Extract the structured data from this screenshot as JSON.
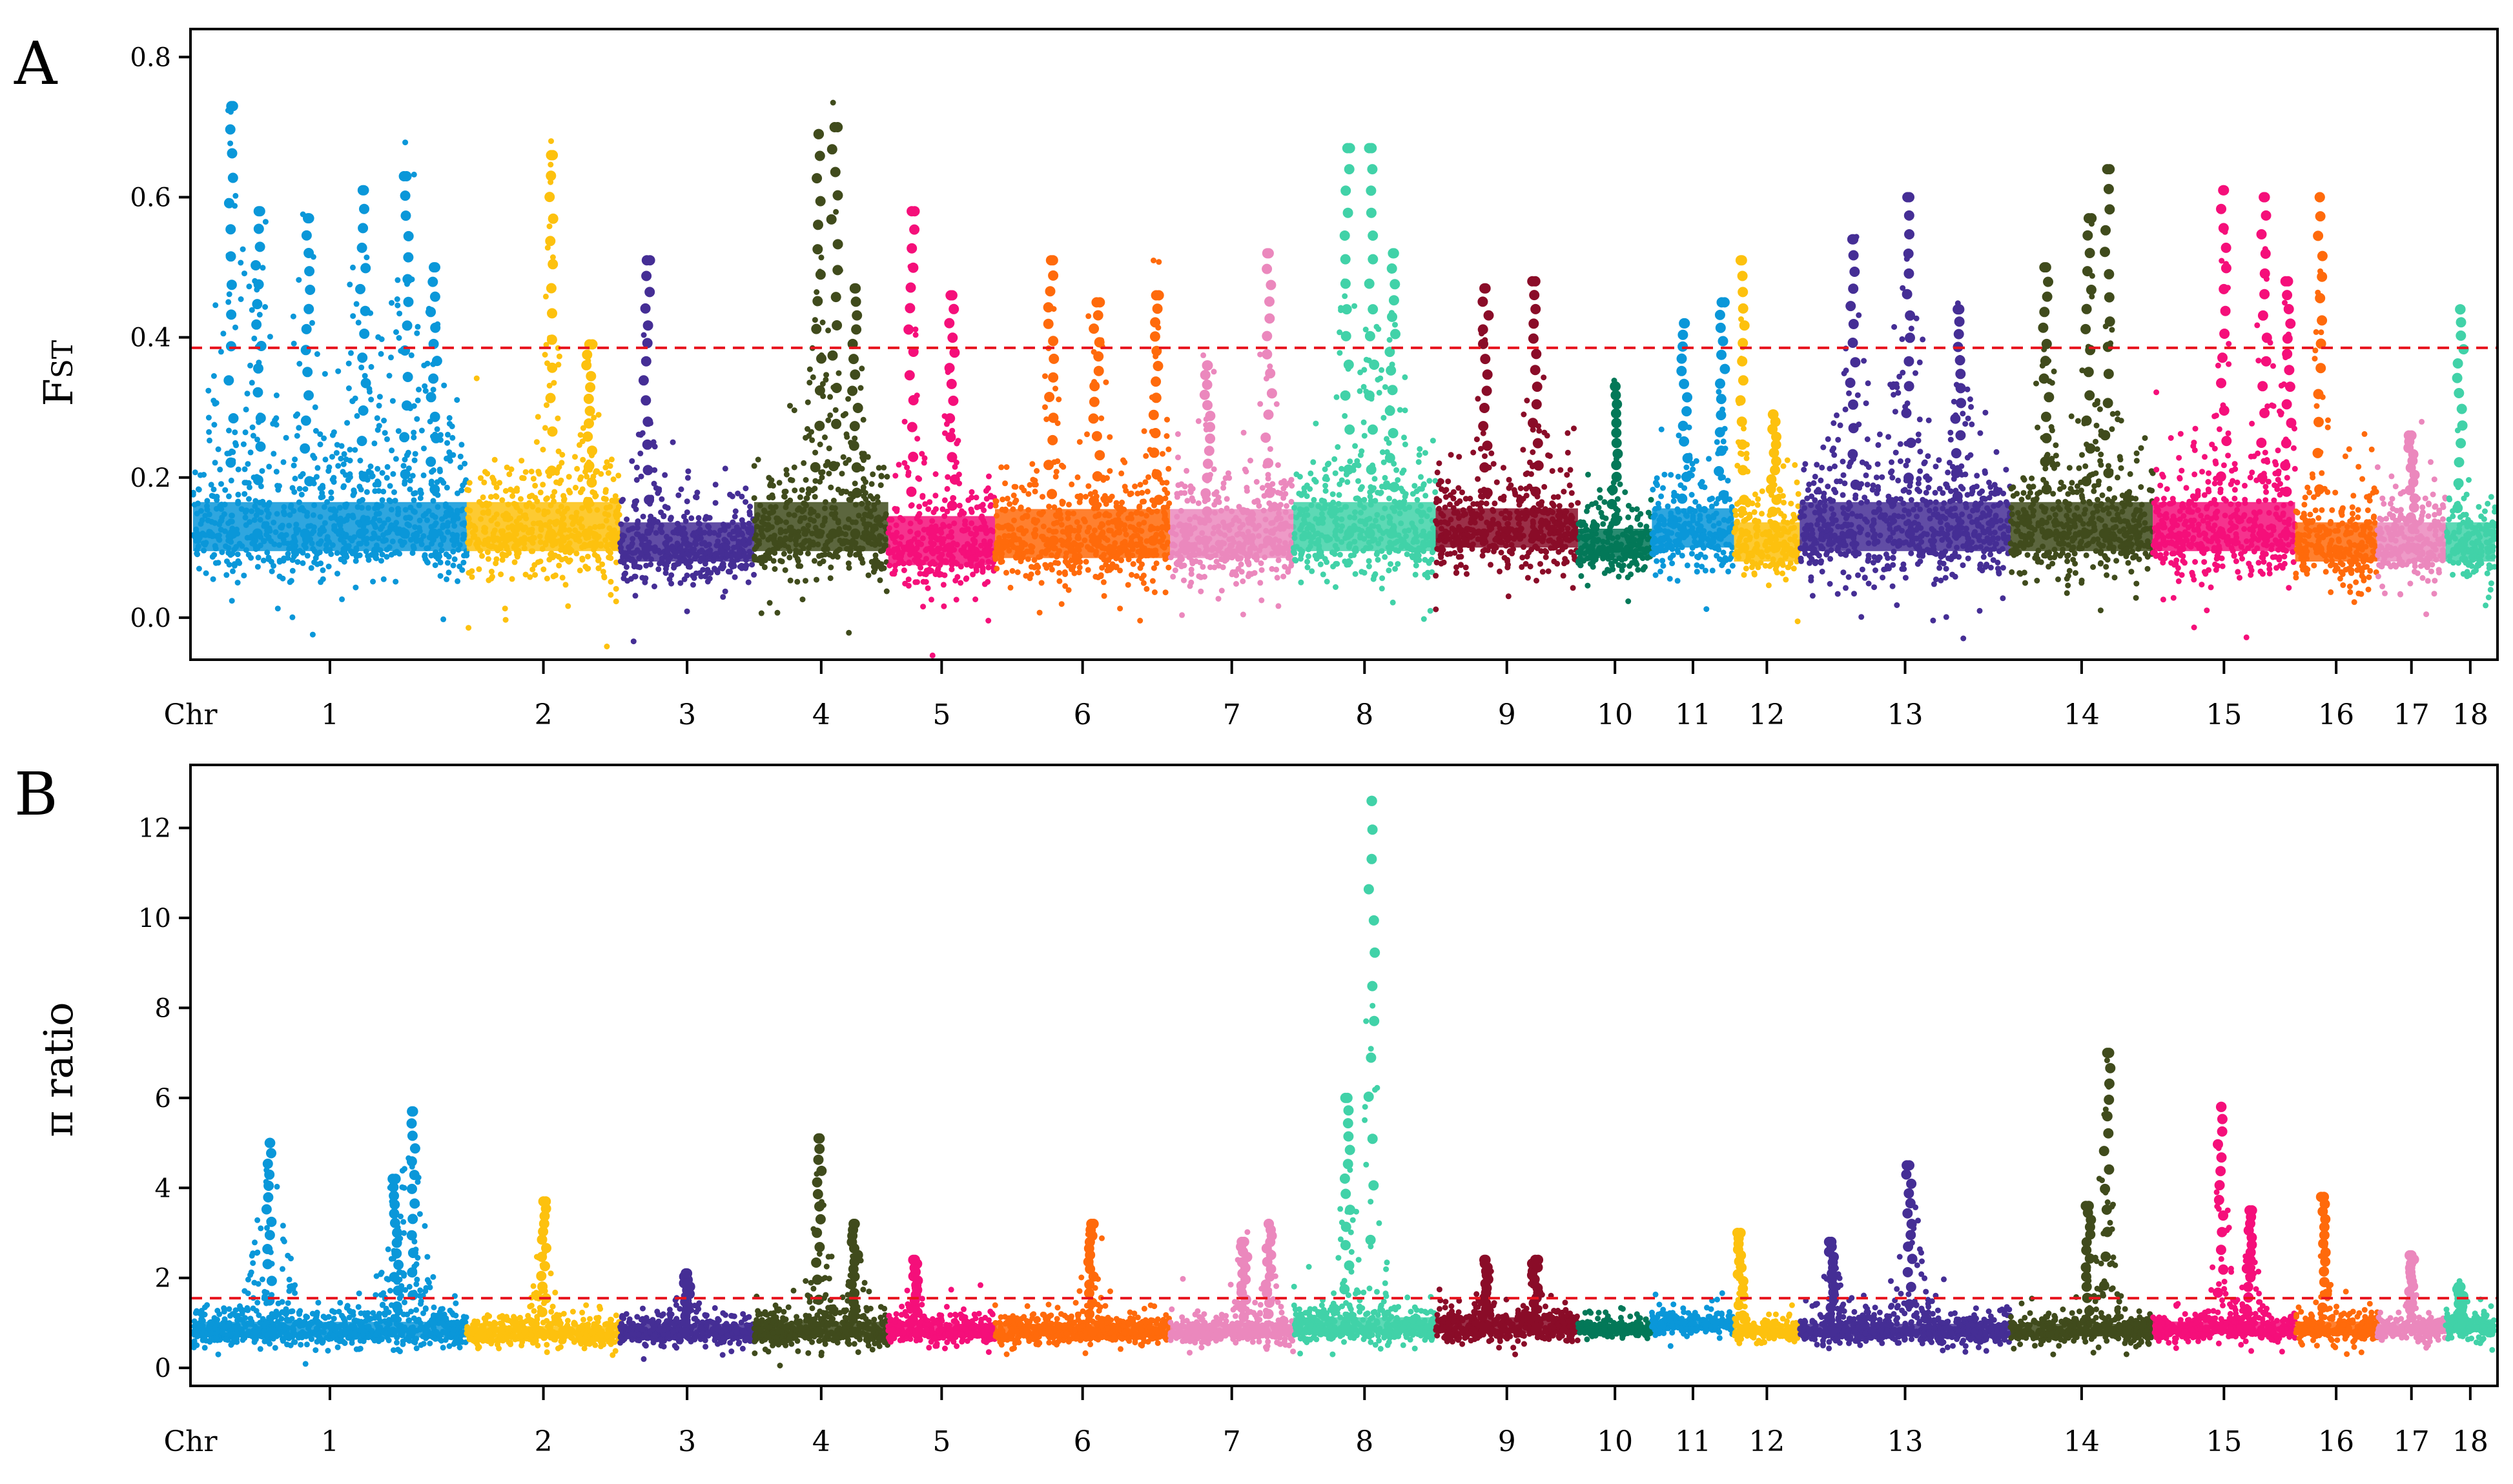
{
  "chart_data": [
    {
      "type": "scatter",
      "subtype": "manhattan",
      "panel_label": "A",
      "ylabel": "Fst",
      "ylabel_main": "F",
      "ylabel_sub": "ST",
      "xlabel_prefix": "Chr",
      "ylim": [
        -0.06,
        0.84
      ],
      "yticks": [
        0.0,
        0.2,
        0.4,
        0.6,
        0.8
      ],
      "ytick_labels": [
        "0.0",
        "0.2",
        "0.4",
        "0.6",
        "0.8"
      ],
      "threshold": 0.385,
      "threshold_color": "#e8141e",
      "chromosomes": [
        {
          "label": "1",
          "start": 0,
          "end": 10,
          "color": "#0a97d9",
          "base": 0.12,
          "spread": 0.05,
          "peaks": [
            {
              "pos": 0.14,
              "value": 0.73
            },
            {
              "pos": 0.24,
              "value": 0.58
            },
            {
              "pos": 0.42,
              "value": 0.57
            },
            {
              "pos": 0.62,
              "value": 0.61
            },
            {
              "pos": 0.78,
              "value": 0.63
            },
            {
              "pos": 0.88,
              "value": 0.5
            }
          ]
        },
        {
          "label": "2",
          "start": 10,
          "end": 15.6,
          "color": "#fdc10e",
          "base": 0.12,
          "spread": 0.05,
          "peaks": [
            {
              "pos": 0.55,
              "value": 0.66
            },
            {
              "pos": 0.8,
              "value": 0.39
            }
          ]
        },
        {
          "label": "3",
          "start": 15.6,
          "end": 20.5,
          "color": "#452e95",
          "base": 0.1,
          "spread": 0.04,
          "peaks": [
            {
              "pos": 0.2,
              "value": 0.51
            }
          ]
        },
        {
          "label": "4",
          "start": 20.5,
          "end": 25.4,
          "color": "#404b1c",
          "base": 0.12,
          "spread": 0.05,
          "peaks": [
            {
              "pos": 0.48,
              "value": 0.69
            },
            {
              "pos": 0.6,
              "value": 0.7
            },
            {
              "pos": 0.75,
              "value": 0.47
            }
          ]
        },
        {
          "label": "5",
          "start": 25.4,
          "end": 29.3,
          "color": "#f50f7a",
          "base": 0.1,
          "spread": 0.05,
          "peaks": [
            {
              "pos": 0.22,
              "value": 0.58
            },
            {
              "pos": 0.6,
              "value": 0.46
            }
          ]
        },
        {
          "label": "6",
          "start": 29.3,
          "end": 35.7,
          "color": "#ff6a0b",
          "base": 0.11,
          "spread": 0.05,
          "peaks": [
            {
              "pos": 0.32,
              "value": 0.51
            },
            {
              "pos": 0.58,
              "value": 0.45
            },
            {
              "pos": 0.92,
              "value": 0.46
            }
          ]
        },
        {
          "label": "7",
          "start": 35.7,
          "end": 40.2,
          "color": "#eb88bd",
          "base": 0.11,
          "spread": 0.05,
          "peaks": [
            {
              "pos": 0.3,
              "value": 0.36
            },
            {
              "pos": 0.8,
              "value": 0.52
            }
          ]
        },
        {
          "label": "8",
          "start": 40.2,
          "end": 45.4,
          "color": "#41d2a8",
          "base": 0.12,
          "spread": 0.05,
          "peaks": [
            {
              "pos": 0.38,
              "value": 0.67
            },
            {
              "pos": 0.55,
              "value": 0.67
            },
            {
              "pos": 0.7,
              "value": 0.52
            }
          ]
        },
        {
          "label": "9",
          "start": 45.4,
          "end": 50.6,
          "color": "#8a0c28",
          "base": 0.12,
          "spread": 0.04,
          "peaks": [
            {
              "pos": 0.35,
              "value": 0.47
            },
            {
              "pos": 0.7,
              "value": 0.48
            }
          ]
        },
        {
          "label": "10",
          "start": 50.6,
          "end": 53.3,
          "color": "#037858",
          "base": 0.1,
          "spread": 0.03,
          "peaks": [
            {
              "pos": 0.5,
              "value": 0.33
            }
          ]
        },
        {
          "label": "11",
          "start": 53.3,
          "end": 56.3,
          "color": "#0a97d9",
          "base": 0.12,
          "spread": 0.04,
          "peaks": [
            {
              "pos": 0.4,
              "value": 0.42
            },
            {
              "pos": 0.85,
              "value": 0.45
            }
          ]
        },
        {
          "label": "12",
          "start": 56.3,
          "end": 58.7,
          "color": "#fdc10e",
          "base": 0.1,
          "spread": 0.04,
          "peaks": [
            {
              "pos": 0.12,
              "value": 0.51
            },
            {
              "pos": 0.6,
              "value": 0.29
            }
          ]
        },
        {
          "label": "13",
          "start": 58.7,
          "end": 66.4,
          "color": "#452e95",
          "base": 0.12,
          "spread": 0.05,
          "peaks": [
            {
              "pos": 0.25,
              "value": 0.54
            },
            {
              "pos": 0.52,
              "value": 0.6
            },
            {
              "pos": 0.75,
              "value": 0.44
            }
          ]
        },
        {
          "label": "14",
          "start": 66.4,
          "end": 71.6,
          "color": "#404b1c",
          "base": 0.12,
          "spread": 0.05,
          "peaks": [
            {
              "pos": 0.25,
              "value": 0.5
            },
            {
              "pos": 0.55,
              "value": 0.57
            },
            {
              "pos": 0.68,
              "value": 0.64
            }
          ]
        },
        {
          "label": "15",
          "start": 71.6,
          "end": 76.8,
          "color": "#f50f7a",
          "base": 0.12,
          "spread": 0.05,
          "peaks": [
            {
              "pos": 0.5,
              "value": 0.61
            },
            {
              "pos": 0.78,
              "value": 0.6
            },
            {
              "pos": 0.95,
              "value": 0.48
            }
          ]
        },
        {
          "label": "16",
          "start": 76.8,
          "end": 79.8,
          "color": "#ff6a0b",
          "base": 0.1,
          "spread": 0.04,
          "peaks": [
            {
              "pos": 0.3,
              "value": 0.6
            }
          ]
        },
        {
          "label": "17",
          "start": 79.8,
          "end": 82.3,
          "color": "#eb88bd",
          "base": 0.1,
          "spread": 0.04,
          "peaks": [
            {
              "pos": 0.5,
              "value": 0.26
            }
          ]
        },
        {
          "label": "18",
          "start": 82.3,
          "end": 84.1,
          "color": "#41d2a8",
          "base": 0.1,
          "spread": 0.04,
          "peaks": [
            {
              "pos": 0.3,
              "value": 0.44
            }
          ]
        }
      ]
    },
    {
      "type": "scatter",
      "subtype": "manhattan",
      "panel_label": "B",
      "ylabel": "π ratio",
      "xlabel_prefix": "Chr",
      "ylim": [
        -0.4,
        13.4
      ],
      "yticks": [
        0,
        2,
        4,
        6,
        8,
        10,
        12
      ],
      "ytick_labels": [
        "0",
        "2",
        "4",
        "6",
        "8",
        "10",
        "12"
      ],
      "threshold": 1.55,
      "threshold_color": "#e8141e",
      "chromosomes": [
        {
          "label": "1",
          "start": 0,
          "end": 10,
          "color": "#0a97d9",
          "base": 0.8,
          "spread": 0.25,
          "peaks": [
            {
              "pos": 0.28,
              "value": 5.0
            },
            {
              "pos": 0.74,
              "value": 4.2
            },
            {
              "pos": 0.8,
              "value": 5.7
            }
          ]
        },
        {
          "label": "2",
          "start": 10,
          "end": 15.6,
          "color": "#fdc10e",
          "base": 0.75,
          "spread": 0.2,
          "peaks": [
            {
              "pos": 0.5,
              "value": 3.7
            }
          ]
        },
        {
          "label": "3",
          "start": 15.6,
          "end": 20.5,
          "color": "#452e95",
          "base": 0.8,
          "spread": 0.2,
          "peaks": [
            {
              "pos": 0.5,
              "value": 2.1
            }
          ]
        },
        {
          "label": "4",
          "start": 20.5,
          "end": 25.4,
          "color": "#404b1c",
          "base": 0.8,
          "spread": 0.25,
          "peaks": [
            {
              "pos": 0.48,
              "value": 5.1
            },
            {
              "pos": 0.75,
              "value": 3.2
            }
          ]
        },
        {
          "label": "5",
          "start": 25.4,
          "end": 29.3,
          "color": "#f50f7a",
          "base": 0.8,
          "spread": 0.2,
          "peaks": [
            {
              "pos": 0.25,
              "value": 2.4
            }
          ]
        },
        {
          "label": "6",
          "start": 29.3,
          "end": 35.7,
          "color": "#ff6a0b",
          "base": 0.8,
          "spread": 0.2,
          "peaks": [
            {
              "pos": 0.55,
              "value": 3.2
            }
          ]
        },
        {
          "label": "7",
          "start": 35.7,
          "end": 40.2,
          "color": "#eb88bd",
          "base": 0.8,
          "spread": 0.2,
          "peaks": [
            {
              "pos": 0.6,
              "value": 2.8
            },
            {
              "pos": 0.8,
              "value": 3.2
            }
          ]
        },
        {
          "label": "8",
          "start": 40.2,
          "end": 45.4,
          "color": "#41d2a8",
          "base": 0.9,
          "spread": 0.25,
          "peaks": [
            {
              "pos": 0.38,
              "value": 6.0
            },
            {
              "pos": 0.55,
              "value": 12.6
            }
          ]
        },
        {
          "label": "9",
          "start": 45.4,
          "end": 50.6,
          "color": "#8a0c28",
          "base": 0.9,
          "spread": 0.25,
          "peaks": [
            {
              "pos": 0.35,
              "value": 2.4
            },
            {
              "pos": 0.7,
              "value": 2.4
            }
          ]
        },
        {
          "label": "10",
          "start": 50.6,
          "end": 53.3,
          "color": "#037858",
          "base": 0.85,
          "spread": 0.12,
          "peaks": []
        },
        {
          "label": "11",
          "start": 53.3,
          "end": 56.3,
          "color": "#0a97d9",
          "base": 0.95,
          "spread": 0.15,
          "peaks": []
        },
        {
          "label": "12",
          "start": 56.3,
          "end": 58.7,
          "color": "#fdc10e",
          "base": 0.8,
          "spread": 0.15,
          "peaks": [
            {
              "pos": 0.1,
              "value": 3.0
            }
          ]
        },
        {
          "label": "13",
          "start": 58.7,
          "end": 66.4,
          "color": "#452e95",
          "base": 0.8,
          "spread": 0.2,
          "peaks": [
            {
              "pos": 0.15,
              "value": 2.8
            },
            {
              "pos": 0.52,
              "value": 4.5
            }
          ]
        },
        {
          "label": "14",
          "start": 66.4,
          "end": 71.6,
          "color": "#404b1c",
          "base": 0.8,
          "spread": 0.2,
          "peaks": [
            {
              "pos": 0.55,
              "value": 3.6
            },
            {
              "pos": 0.68,
              "value": 7.0
            }
          ]
        },
        {
          "label": "15",
          "start": 71.6,
          "end": 76.8,
          "color": "#f50f7a",
          "base": 0.85,
          "spread": 0.2,
          "peaks": [
            {
              "pos": 0.48,
              "value": 5.8
            },
            {
              "pos": 0.68,
              "value": 3.5
            }
          ]
        },
        {
          "label": "16",
          "start": 76.8,
          "end": 79.8,
          "color": "#ff6a0b",
          "base": 0.85,
          "spread": 0.2,
          "peaks": [
            {
              "pos": 0.35,
              "value": 3.8
            }
          ]
        },
        {
          "label": "17",
          "start": 79.8,
          "end": 82.3,
          "color": "#eb88bd",
          "base": 0.85,
          "spread": 0.15,
          "peaks": [
            {
              "pos": 0.5,
              "value": 2.5
            }
          ]
        },
        {
          "label": "18",
          "start": 82.3,
          "end": 84.1,
          "color": "#41d2a8",
          "base": 0.9,
          "spread": 0.2,
          "peaks": [
            {
              "pos": 0.3,
              "value": 1.8
            }
          ]
        }
      ]
    }
  ]
}
